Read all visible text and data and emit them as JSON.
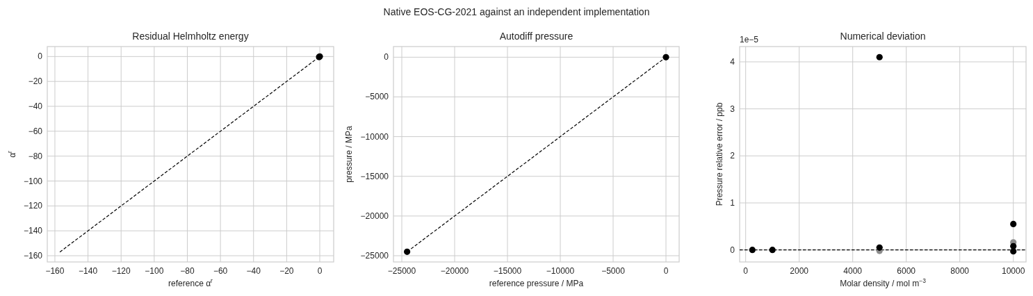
{
  "chart_data": [
    {
      "type": "scatter",
      "title": "Residual Helmholtz energy",
      "annotations": [
        "Native EOS-CG-2021 against an independent implementation"
      ],
      "xlabel": "reference α$^{r}$",
      "ylabel": "α$^{r}$",
      "xlim": [
        -164.6,
        8.4
      ],
      "ylim": [
        -165,
        8
      ],
      "xticks": [
        -160,
        -140,
        -120,
        -100,
        -80,
        -60,
        -40,
        -20,
        0
      ],
      "yticks": [
        -160,
        -140,
        -120,
        -100,
        -80,
        -60,
        -40,
        -20,
        0
      ],
      "grid": true,
      "marker": "circle",
      "series": [
        {
          "type": "line",
          "color": "#000000",
          "line_style": "dashed",
          "marker": "none",
          "x": [
            -157,
            0
          ],
          "values": [
            -157,
            0
          ]
        },
        {
          "color": "#000000",
          "x": [
            -0.4,
            0
          ],
          "values": [
            -0.4,
            0
          ]
        }
      ]
    },
    {
      "type": "scatter",
      "title": "Autodiff pressure",
      "xlabel": "reference pressure / MPa",
      "ylabel": "pressure / MPa",
      "xlim": [
        -25790,
        1250
      ],
      "ylim": [
        -25785,
        1340
      ],
      "xticks": [
        -25000,
        -20000,
        -15000,
        -10000,
        -5000,
        0
      ],
      "yticks": [
        -25000,
        -20000,
        -15000,
        -10000,
        -5000,
        0
      ],
      "grid": true,
      "marker": "circle",
      "series": [
        {
          "type": "line",
          "color": "#000000",
          "line_style": "dashed",
          "marker": "none",
          "x": [
            -24500,
            0
          ],
          "values": [
            -24500,
            0
          ]
        },
        {
          "color": "#000000",
          "x": [
            -24500,
            0
          ],
          "values": [
            -24500,
            0
          ]
        }
      ]
    },
    {
      "type": "scatter",
      "title": "Numerical deviation",
      "annotations": [
        "1e−5"
      ],
      "xlabel": "Molar density / mol m$^{−3}$",
      "ylabel": "Pressure relative error / ppb",
      "xlim": [
        -225,
        10475
      ],
      "ylim": [
        -0.256,
        4.325
      ],
      "xticks": [
        0,
        2000,
        4000,
        6000,
        8000,
        10000
      ],
      "yticks": [
        0,
        1,
        2,
        3,
        4
      ],
      "grid": true,
      "marker": "circle",
      "ref_lines": [
        {
          "axis": "y",
          "value": 0,
          "color": "#000000",
          "line_style": "dashed"
        }
      ],
      "series": [
        {
          "color": "#8c8c8c",
          "x": [
            5000,
            10000
          ],
          "values": [
            -0.02,
            0.16
          ]
        },
        {
          "color": "#000000",
          "x": [
            250,
            1000,
            5000,
            5000,
            10000,
            10000,
            10000
          ],
          "values": [
            0,
            0,
            4.1,
            0.05,
            0.55,
            0.08,
            -0.03
          ]
        }
      ]
    }
  ]
}
